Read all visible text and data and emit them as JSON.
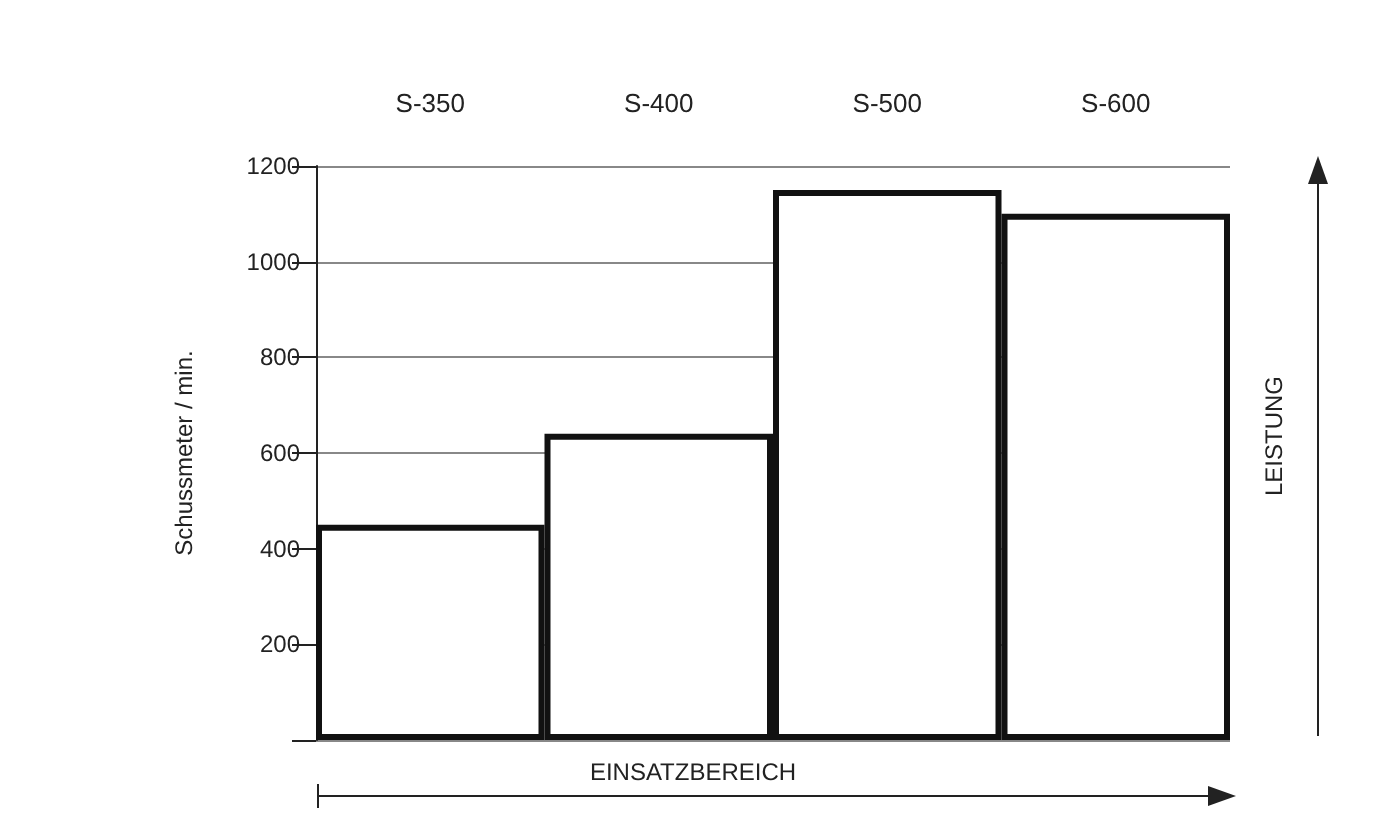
{
  "chart_data": {
    "type": "bar",
    "categories": [
      "S-350",
      "S-400",
      "S-500",
      "S-600"
    ],
    "values": [
      450,
      640,
      1150,
      1100
    ],
    "color": "#ffffff",
    "ylabel": "Schussmeter / min.",
    "xlabel": "EINSATZBEREICH",
    "y2label": "LEISTUNG",
    "ylim": [
      0,
      1200
    ],
    "yticks": [
      {
        "value": 0,
        "label": null
      },
      200,
      400,
      600,
      800,
      1000,
      1200
    ],
    "grid": "y"
  }
}
